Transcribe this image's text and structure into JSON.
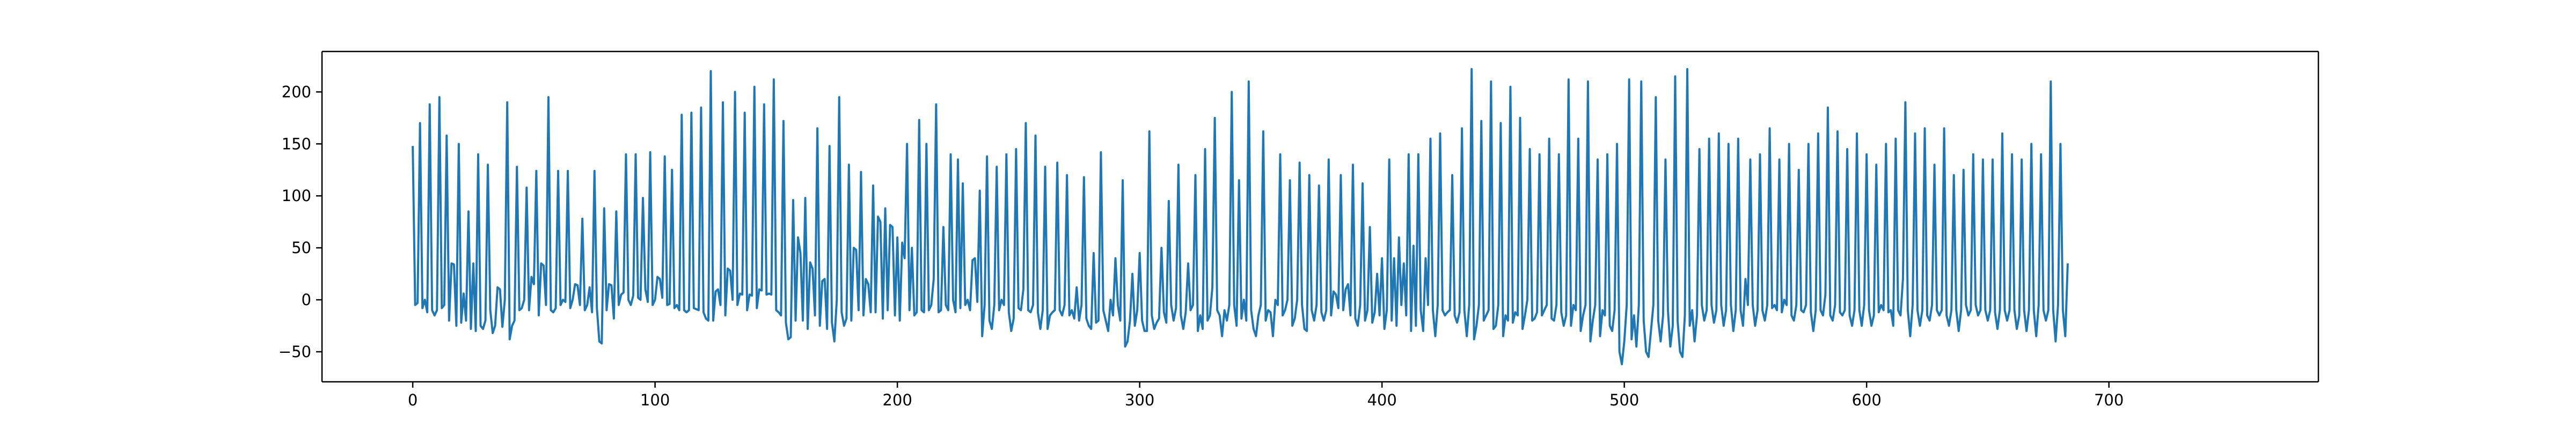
{
  "chart_data": {
    "type": "line",
    "title": "",
    "xlabel": "",
    "ylabel": "",
    "xlim": [
      -37.45,
      786.45
    ],
    "ylim": [
      -78.9,
      238.9
    ],
    "grid": false,
    "x_ticks": [
      0,
      100,
      200,
      300,
      400,
      500,
      600,
      700
    ],
    "y_ticks": [
      -50,
      0,
      50,
      100,
      150,
      200
    ],
    "x_tick_labels": [
      "0",
      "100",
      "200",
      "300",
      "400",
      "500",
      "600",
      "700"
    ],
    "y_tick_labels": [
      "−50",
      "0",
      "50",
      "100",
      "150",
      "200"
    ],
    "line_color": "#1f77b4",
    "series": [
      {
        "x_start": 0,
        "x_step": 1,
        "values": [
          148,
          -5,
          -3,
          170,
          -8,
          0,
          -12,
          188,
          -10,
          -15,
          -10,
          195,
          -8,
          -5,
          158,
          -20,
          35,
          34,
          -25,
          150,
          -22,
          6,
          -20,
          85,
          -28,
          35,
          -30,
          140,
          -25,
          -28,
          -20,
          130,
          -10,
          -32,
          -25,
          12,
          10,
          -26,
          0,
          190,
          -38,
          -25,
          -20,
          128,
          -10,
          -8,
          0,
          108,
          -10,
          22,
          15,
          124,
          -15,
          35,
          33,
          -5,
          195,
          -10,
          -12,
          -8,
          124,
          -5,
          0,
          -2,
          124,
          -8,
          0,
          15,
          14,
          -5,
          78,
          -10,
          -5,
          12,
          -12,
          124,
          -8,
          -40,
          -42,
          88,
          -10,
          15,
          14,
          -18,
          85,
          -5,
          5,
          7,
          140,
          0,
          -5,
          4,
          140,
          2,
          0,
          98,
          10,
          -2,
          142,
          -5,
          0,
          22,
          20,
          2,
          138,
          -5,
          -4,
          125,
          -8,
          -5,
          -10,
          178,
          -10,
          -12,
          -10,
          180,
          -8,
          -9,
          -10,
          185,
          -12,
          -18,
          -20,
          220,
          -20,
          8,
          10,
          -5,
          190,
          -15,
          30,
          28,
          0,
          200,
          -5,
          6,
          5,
          180,
          -10,
          5,
          4,
          205,
          -8,
          10,
          9,
          188,
          5,
          6,
          5,
          212,
          -10,
          -12,
          -15,
          172,
          -22,
          -38,
          -36,
          96,
          -20,
          60,
          45,
          -20,
          98,
          -28,
          36,
          30,
          -15,
          165,
          -25,
          18,
          20,
          -28,
          148,
          -22,
          -40,
          0,
          195,
          -12,
          -25,
          -18,
          130,
          -20,
          50,
          48,
          -10,
          123,
          -15,
          20,
          15,
          -12,
          110,
          -12,
          80,
          75,
          -18,
          88,
          -10,
          72,
          70,
          -15,
          60,
          -20,
          55,
          40,
          150,
          -10,
          50,
          -15,
          -12,
          173,
          -10,
          -12,
          150,
          -10,
          -5,
          20,
          188,
          -12,
          -10,
          70,
          -5,
          -10,
          140,
          0,
          -12,
          135,
          -8,
          112,
          -5,
          0,
          -10,
          38,
          40,
          -2,
          105,
          -35,
          -5,
          138,
          -20,
          -28,
          -5,
          128,
          -10,
          0,
          -5,
          140,
          -12,
          -30,
          -18,
          145,
          -8,
          -10,
          10,
          170,
          -10,
          -12,
          -5,
          158,
          -12,
          -28,
          -10,
          128,
          -28,
          -15,
          -12,
          -10,
          132,
          -10,
          -15,
          -5,
          120,
          -15,
          -10,
          -18,
          12,
          -20,
          -5,
          118,
          -18,
          -25,
          -28,
          45,
          -22,
          -20,
          142,
          -10,
          -20,
          -30,
          0,
          -15,
          40,
          -5,
          -20,
          115,
          -45,
          -40,
          -20,
          25,
          -25,
          -10,
          45,
          -20,
          -30,
          -30,
          162,
          -15,
          -28,
          -22,
          -18,
          50,
          -12,
          -22,
          95,
          -5,
          -20,
          -8,
          130,
          -15,
          -28,
          -12,
          35,
          -10,
          -5,
          120,
          -30,
          -15,
          -28,
          145,
          -20,
          -15,
          12,
          175,
          -10,
          -15,
          -35,
          -10,
          -20,
          -5,
          200,
          -5,
          -25,
          115,
          -18,
          0,
          -20,
          210,
          -10,
          -28,
          -35,
          -15,
          -5,
          162,
          -20,
          -10,
          -12,
          -35,
          0,
          -5,
          140,
          -15,
          -10,
          0,
          115,
          -25,
          -18,
          0,
          132,
          -5,
          -28,
          -30,
          120,
          -10,
          -20,
          -5,
          110,
          -12,
          -20,
          -10,
          135,
          -15,
          8,
          5,
          -8,
          120,
          -10,
          10,
          15,
          -15,
          130,
          -18,
          -25,
          -5,
          112,
          -20,
          -10,
          70,
          -22,
          -12,
          25,
          -15,
          40,
          -28,
          -10,
          135,
          -20,
          40,
          -25,
          60,
          -5,
          35,
          -15,
          140,
          -30,
          52,
          -25,
          140,
          -10,
          -30,
          40,
          -5,
          155,
          -10,
          -35,
          -5,
          160,
          -10,
          -15,
          -12,
          -10,
          120,
          -15,
          -22,
          -12,
          165,
          -10,
          -35,
          -5,
          222,
          -38,
          -25,
          -5,
          172,
          -20,
          -15,
          -10,
          210,
          -28,
          -25,
          -5,
          170,
          -35,
          -15,
          -20,
          205,
          -22,
          -12,
          -15,
          175,
          -28,
          -15,
          0,
          145,
          -20,
          -18,
          -12,
          140,
          -15,
          -10,
          -5,
          155,
          -18,
          -20,
          -5,
          140,
          -12,
          -25,
          -15,
          212,
          -25,
          -5,
          -10,
          155,
          -30,
          -15,
          -5,
          210,
          -40,
          -20,
          -5,
          135,
          -35,
          -10,
          -15,
          140,
          -25,
          -30,
          -10,
          150,
          -50,
          -62,
          -40,
          -5,
          212,
          -38,
          -15,
          -45,
          -5,
          210,
          -20,
          -50,
          -55,
          -30,
          -5,
          195,
          -20,
          -40,
          -15,
          135,
          -10,
          -45,
          -25,
          215,
          -20,
          -50,
          -55,
          -15,
          222,
          -25,
          -10,
          -40,
          -15,
          145,
          -5,
          -20,
          -10,
          155,
          -5,
          -22,
          -10,
          160,
          -5,
          -25,
          -10,
          150,
          -5,
          -30,
          -10,
          155,
          -10,
          -25,
          20,
          -5,
          135,
          -5,
          -25,
          -10,
          140,
          -10,
          -20,
          -5,
          165,
          -8,
          -5,
          -10,
          135,
          -12,
          0,
          -5,
          150,
          -15,
          -20,
          -5,
          125,
          -10,
          -12,
          -5,
          150,
          -12,
          -30,
          -10,
          160,
          -10,
          -15,
          5,
          185,
          -15,
          -20,
          -5,
          162,
          -12,
          -15,
          -10,
          145,
          -15,
          -25,
          -10,
          160,
          -10,
          -25,
          -5,
          140,
          -10,
          -25,
          -15,
          130,
          -12,
          -5,
          -10,
          150,
          -12,
          -10,
          -25,
          155,
          -10,
          -15,
          20,
          190,
          -10,
          -35,
          -5,
          160,
          -10,
          -25,
          -10,
          165,
          -15,
          -20,
          -5,
          130,
          -10,
          -15,
          -10,
          165,
          -15,
          -25,
          -10,
          120,
          -10,
          -30,
          -10,
          125,
          -5,
          -15,
          -10,
          140,
          -5,
          -15,
          -10,
          135,
          -10,
          -20,
          -10,
          135,
          -12,
          -28,
          -10,
          160,
          -10,
          -20,
          -10,
          140,
          -10,
          -28,
          -15,
          135,
          -10,
          -30,
          -10,
          150,
          -10,
          -35,
          -5,
          140,
          -10,
          -20,
          -10,
          210,
          -10,
          -40,
          -5,
          150,
          -10,
          -35,
          35
        ]
      }
    ]
  }
}
